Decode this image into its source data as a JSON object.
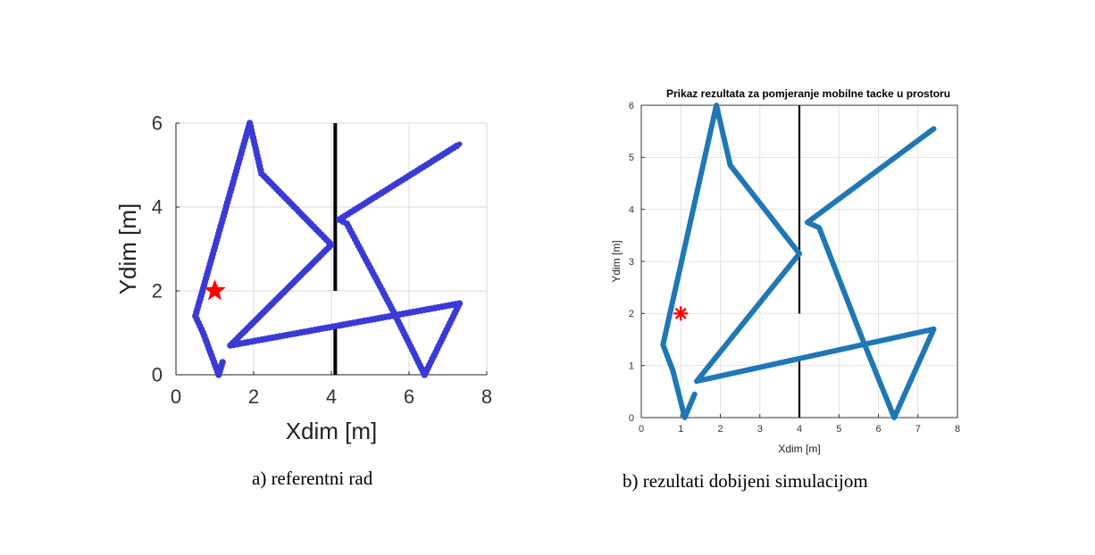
{
  "captions": {
    "a": "a) referentni rad",
    "b": "b) rezultati dobijeni simulacijom"
  },
  "chart_data": [
    {
      "type": "line",
      "title": "",
      "xlabel": "Xdim [m]",
      "ylabel": "Ydim [m]",
      "xlim": [
        0,
        8
      ],
      "ylim": [
        0,
        6
      ],
      "xticks": [
        0,
        2,
        4,
        6,
        8
      ],
      "yticks": [
        0,
        2,
        4,
        6
      ],
      "grid": true,
      "colors": {
        "path": "#3a3ad6",
        "wall": "#000000",
        "target": "#ff0000"
      },
      "marker": "circle",
      "path": {
        "x": [
          1.2,
          1.1,
          0.7,
          0.5,
          1.9,
          2.2,
          4.0,
          1.4,
          7.3,
          6.4,
          5.6,
          4.4,
          4.2,
          7.3
        ],
        "y": [
          0.3,
          0.0,
          1.0,
          1.4,
          6.0,
          4.8,
          3.1,
          0.7,
          1.7,
          0.0,
          1.5,
          3.6,
          3.7,
          5.5
        ]
      },
      "wall": {
        "x": [
          4.1,
          4.1
        ],
        "y": [
          0.0,
          6.0
        ],
        "gap": [
          1.0,
          2.0
        ]
      },
      "target": {
        "x": 1.0,
        "y": 2.0,
        "symbol": "star"
      }
    },
    {
      "type": "line",
      "title": "Prikaz rezultata za pomjeranje mobilne tacke u prostoru",
      "xlabel": "Xdim [m]",
      "ylabel": "Ydim [m]",
      "xlim": [
        0,
        8
      ],
      "ylim": [
        0,
        6
      ],
      "xticks": [
        0,
        1,
        2,
        3,
        4,
        5,
        6,
        7,
        8
      ],
      "yticks": [
        0,
        1,
        2,
        3,
        4,
        5,
        6
      ],
      "grid": true,
      "colors": {
        "path": "#1f77b4",
        "wall": "#000000",
        "target": "#ff0000"
      },
      "marker": "none",
      "path": {
        "x": [
          1.35,
          1.1,
          0.8,
          0.55,
          1.9,
          2.25,
          4.0,
          1.4,
          7.4,
          6.4,
          5.6,
          4.5,
          4.2,
          7.4
        ],
        "y": [
          0.45,
          0.0,
          0.9,
          1.4,
          6.0,
          4.85,
          3.15,
          0.7,
          1.7,
          0.0,
          1.5,
          3.65,
          3.75,
          5.55
        ]
      },
      "wall": {
        "x": [
          4.0,
          4.0
        ],
        "y": [
          0.0,
          6.0
        ],
        "gap": [
          1.0,
          2.0
        ]
      },
      "target": {
        "x": 1.0,
        "y": 2.0,
        "symbol": "asterisk"
      }
    }
  ]
}
